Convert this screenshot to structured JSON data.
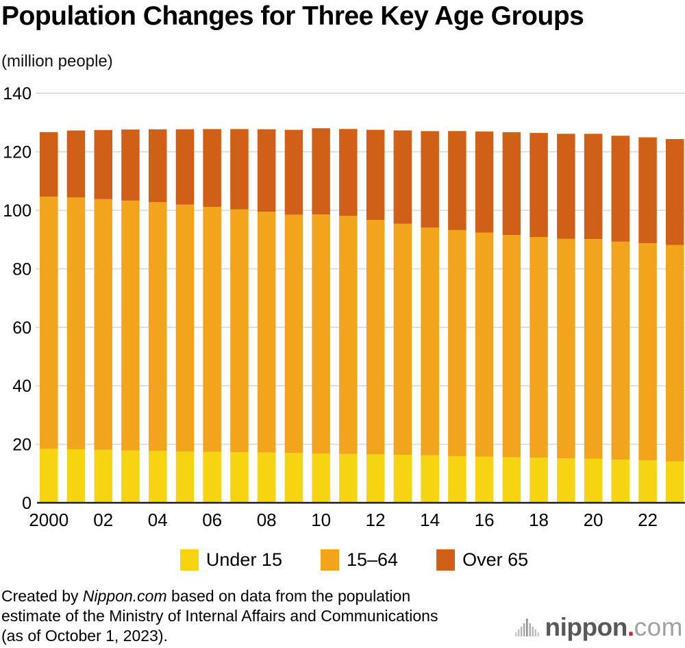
{
  "header": {
    "title": "Population Changes for Three Key Age Groups",
    "unit_label": "(million people)"
  },
  "chart_data": {
    "type": "bar",
    "stacked": true,
    "title": "Population Changes for Three Key Age Groups",
    "ylabel": "(million people)",
    "xlabel": "",
    "ylim": [
      0,
      140
    ],
    "yticks": [
      0,
      20,
      40,
      60,
      80,
      100,
      120,
      140
    ],
    "grid": "horizontal",
    "legend_position": "bottom",
    "x": [
      2000,
      2001,
      2002,
      2003,
      2004,
      2005,
      2006,
      2007,
      2008,
      2009,
      2010,
      2011,
      2012,
      2013,
      2014,
      2015,
      2016,
      2017,
      2018,
      2019,
      2020,
      2021,
      2022,
      2023
    ],
    "x_tick_labels": [
      "2000",
      "",
      "02",
      "",
      "04",
      "",
      "06",
      "",
      "08",
      "",
      "10",
      "",
      "12",
      "",
      "14",
      "",
      "16",
      "",
      "18",
      "",
      "20",
      "",
      "22",
      ""
    ],
    "series": [
      {
        "name": "Under 15",
        "color": "#f6d411",
        "values": [
          18.47,
          18.28,
          18.1,
          17.9,
          17.73,
          17.52,
          17.44,
          17.29,
          17.18,
          17.01,
          16.84,
          16.7,
          16.55,
          16.39,
          16.23,
          15.95,
          15.78,
          15.59,
          15.42,
          15.21,
          15.03,
          14.78,
          14.5,
          14.17
        ]
      },
      {
        "name": "15–64",
        "color": "#f2a41c",
        "values": [
          86.22,
          86.14,
          85.71,
          85.4,
          85.08,
          84.42,
          83.73,
          83.02,
          82.3,
          81.49,
          81.73,
          81.34,
          80.18,
          79.01,
          77.85,
          77.28,
          76.56,
          75.96,
          75.45,
          75.07,
          75.09,
          74.5,
          74.2,
          73.95
        ]
      },
      {
        "name": "Over 65",
        "color": "#d05f17",
        "values": [
          22.04,
          22.87,
          23.63,
          24.31,
          24.88,
          25.76,
          26.6,
          27.46,
          28.22,
          29.01,
          29.48,
          29.75,
          30.79,
          31.9,
          33.0,
          33.87,
          34.59,
          35.15,
          35.58,
          35.89,
          36.03,
          36.21,
          36.24,
          36.23
        ]
      }
    ]
  },
  "legend": {
    "items": [
      {
        "label": "Under 15",
        "color": "#f6d411"
      },
      {
        "label": "15–64",
        "color": "#f2a41c"
      },
      {
        "label": "Over 65",
        "color": "#d05f17"
      }
    ]
  },
  "footer": {
    "credit_line1_prefix": "Created by ",
    "credit_source": "Nippon.com",
    "credit_line1_suffix": " based on data from the population",
    "credit_line2": "estimate of the Ministry of Internal Affairs and Communications",
    "credit_line3": "(as of October 1, 2023).",
    "logo": {
      "name": "nippon",
      "dot": ".",
      "tld": "com",
      "icon": "soundwave-icon"
    }
  },
  "style": {
    "grid_color": "#d8d8d8",
    "axis_color": "#1a1a1a",
    "tick_label_color": "#000000"
  }
}
